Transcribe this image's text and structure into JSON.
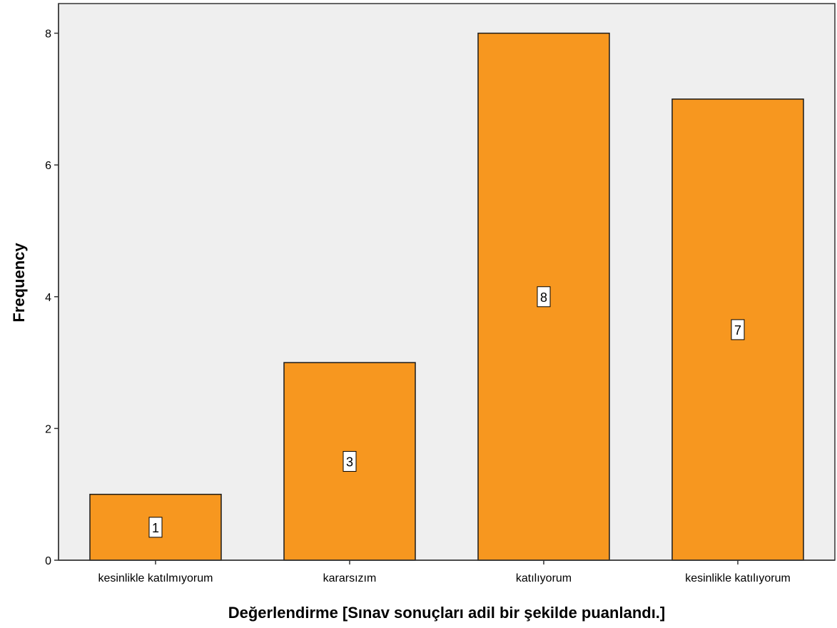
{
  "chart_data": {
    "type": "bar",
    "categories": [
      "kesinlikle katılmıyorum",
      "kararsızım",
      "katılıyorum",
      "kesinlikle katılıyorum"
    ],
    "values": [
      1,
      3,
      8,
      7
    ],
    "data_labels": [
      "1",
      "3",
      "8",
      "7"
    ],
    "xlabel": "Değerlendirme [Sınav sonuçları adil bir şekilde puanlandı.]",
    "ylabel": "Frequency",
    "ylim": [
      0,
      8.45
    ],
    "yticks": [
      0,
      2,
      4,
      6,
      8
    ],
    "ytick_labels": [
      "0",
      "2",
      "4",
      "6",
      "8"
    ],
    "grid": false,
    "legend": "none",
    "colors": {
      "bar": "#F7971F",
      "bar_stroke": "#1a1a1a",
      "plot_background": "#EFEFEF",
      "axis": "#333333"
    }
  }
}
